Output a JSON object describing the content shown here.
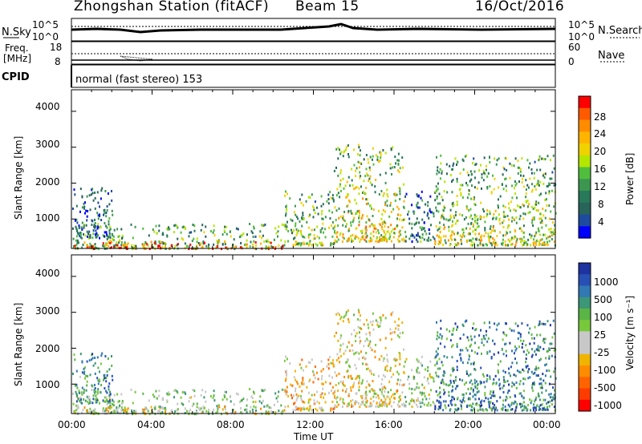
{
  "header": {
    "station": "Zhongshan Station (fitACF)",
    "beam": "Beam 15",
    "date": "16/Oct/2016"
  },
  "noise_panel": {
    "left_label": "N.Sky",
    "right_label": "N.Search",
    "left_ticks": [
      "10^5",
      "10^0"
    ],
    "right_ticks": [
      "10^5",
      "10^0"
    ]
  },
  "freq_panel": {
    "left_label_line1": "Freq.",
    "left_label_line2": "[MHz]",
    "right_label": "Nave",
    "left_ticks": [
      "18",
      "8"
    ],
    "right_ticks": [
      "60",
      "0"
    ]
  },
  "cpid_panel": {
    "label": "CPID",
    "text": "normal (fast stereo) 153"
  },
  "power_panel": {
    "ylabel": "Slant Range [km]",
    "y_ticks": [
      "4000",
      "3000",
      "2000",
      "1000"
    ],
    "colorbar_label": "Power [dB]",
    "colorbar_ticks": [
      "28",
      "24",
      "20",
      "16",
      "12",
      "8",
      "4"
    ],
    "colorbar_colors": [
      "#ff0000",
      "#ff5a00",
      "#ff8c00",
      "#ffb400",
      "#f0d200",
      "#b4e600",
      "#50be3c",
      "#3c9650",
      "#28785a",
      "#28645a",
      "#1e4ba0",
      "#0000ff"
    ]
  },
  "velocity_panel": {
    "ylabel": "Slant Range [km]",
    "y_ticks": [
      "4000",
      "3000",
      "2000",
      "1000"
    ],
    "colorbar_label": "Velocity [m s⁻¹]",
    "colorbar_ticks": [
      "1000",
      "500",
      "100",
      "25",
      "-25",
      "-100",
      "-500",
      "-1000"
    ],
    "colorbar_colors": [
      "#1e32a0",
      "#2850b4",
      "#3278b4",
      "#3c9678",
      "#5ab446",
      "#78c83c",
      "#c8c8c8",
      "#c8c8c8",
      "#f0b400",
      "#ff8c00",
      "#ff6400",
      "#ff3c00",
      "#ff0000"
    ]
  },
  "x_axis": {
    "tick_labels": [
      "00:00",
      "04:00",
      "08:00",
      "12:00",
      "16:00",
      "20:00",
      "00:00"
    ],
    "label": "Time UT"
  },
  "chart_data": {
    "type": "heatmap",
    "title": "Zhongshan Station (fitACF)",
    "x_range_hours": [
      0,
      24
    ],
    "y_range_km": [
      180,
      4600
    ],
    "x_ticks": [
      "00:00",
      "04:00",
      "08:00",
      "12:00",
      "16:00",
      "20:00",
      "00:00"
    ],
    "y_ticks": [
      1000,
      2000,
      3000,
      4000
    ],
    "power_scale_db": [
      4,
      8,
      12,
      16,
      20,
      24,
      28
    ],
    "velocity_scale_ms": [
      -1000,
      -500,
      -100,
      -25,
      25,
      100,
      500,
      1000
    ],
    "freq_ticks_mhz": [
      8,
      18
    ],
    "nave_ticks": [
      0,
      60
    ],
    "scatter_regions": [
      {
        "t_start": 0.0,
        "t_end": 10.5,
        "range_min": 200,
        "range_max": 900,
        "power_db": 14,
        "velocity_ms": 150
      },
      {
        "t_start": 0.0,
        "t_end": 10.5,
        "range_min": 200,
        "range_max": 400,
        "power_db": 28,
        "velocity_ms": -100
      },
      {
        "t_start": 0.0,
        "t_end": 2.0,
        "range_min": 500,
        "range_max": 1900,
        "power_db": 9,
        "velocity_ms": 500
      },
      {
        "t_start": 10.5,
        "t_end": 13.0,
        "range_min": 300,
        "range_max": 1800,
        "power_db": 16,
        "velocity_ms": -300
      },
      {
        "t_start": 13.0,
        "t_end": 16.5,
        "range_min": 400,
        "range_max": 3100,
        "power_db": 20,
        "velocity_ms": -150
      },
      {
        "t_start": 16.5,
        "t_end": 18.0,
        "range_min": 400,
        "range_max": 1800,
        "power_db": 10,
        "velocity_ms": 100
      },
      {
        "t_start": 18.0,
        "t_end": 24.0,
        "range_min": 300,
        "range_max": 2800,
        "power_db": 18,
        "velocity_ms": 600
      }
    ]
  }
}
